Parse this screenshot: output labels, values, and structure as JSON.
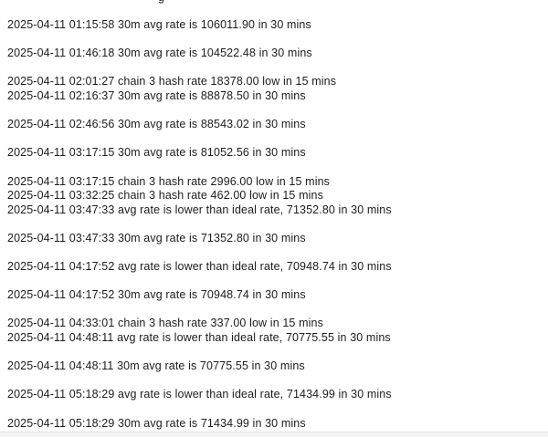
{
  "window": {
    "background_color": "#ffffff",
    "text_color": "#1c1c1c",
    "bottom_strip_color": "#f3f3f3",
    "bottom_strip_border_color": "#e3e3e3"
  },
  "log": {
    "clipped_fragment": "g",
    "lines": [
      "2025-04-11 01:15:58 30m avg rate is 106011.90 in 30 mins",
      "2025-04-11 01:46:18 30m avg rate is 104522.48 in 30 mins",
      "2025-04-11 02:01:27 chain 3 hash rate 18378.00 low in 15 mins",
      "2025-04-11 02:16:37 30m avg rate is 88878.50 in 30 mins",
      "2025-04-11 02:46:56 30m avg rate is 88543.02 in 30 mins",
      "2025-04-11 03:17:15 30m avg rate is 81052.56 in 30 mins",
      "2025-04-11 03:17:15 chain 3 hash rate 2996.00 low in 15 mins",
      "2025-04-11 03:32:25 chain 3 hash rate 462.00 low in 15 mins",
      "2025-04-11 03:47:33 avg rate is lower than ideal rate, 71352.80 in 30 mins",
      "2025-04-11 03:47:33 30m avg rate is 71352.80 in 30 mins",
      "2025-04-11 04:17:52 avg rate is lower than ideal rate, 70948.74 in 30 mins",
      "2025-04-11 04:17:52 30m avg rate is 70948.74 in 30 mins",
      "2025-04-11 04:33:01 chain 3 hash rate 337.00 low in 15 mins",
      "2025-04-11 04:48:11 avg rate is lower than ideal rate, 70775.55 in 30 mins",
      "2025-04-11 04:48:11 30m avg rate is 70775.55 in 30 mins",
      "2025-04-11 05:18:29 avg rate is lower than ideal rate, 71434.99 in 30 mins",
      "2025-04-11 05:18:29 30m avg rate is 71434.99 in 30 mins"
    ]
  }
}
